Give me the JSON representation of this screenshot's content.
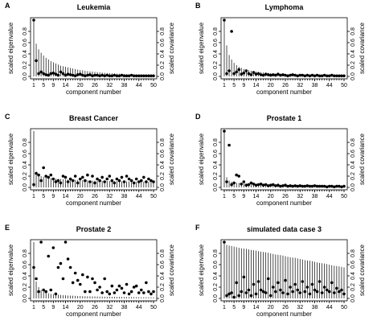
{
  "chart_data": [
    {
      "type": "scatter",
      "letter": "A",
      "title": "Leukemia",
      "xlabel": "component number",
      "ylabel": "scaled eigenvalue",
      "ylabel_right": "scaled covariance",
      "xlim": [
        1,
        50
      ],
      "ylim": [
        0,
        1
      ],
      "x_ticks": [
        "1",
        "5",
        "9",
        "14",
        "20",
        "26",
        "32",
        "38",
        "44",
        "50"
      ],
      "y_ticks": [
        "0.0",
        "0.2",
        "0.4",
        "0.6",
        "0.8"
      ],
      "y_ticks_right": [
        "0.0",
        "0.2",
        "0.4",
        "0.6",
        "0.8"
      ],
      "eigenvalues": [
        1.0,
        0.58,
        0.48,
        0.42,
        0.37,
        0.33,
        0.3,
        0.27,
        0.25,
        0.23,
        0.21,
        0.19,
        0.18,
        0.17,
        0.16,
        0.15,
        0.14,
        0.13,
        0.12,
        0.115,
        0.11,
        0.1,
        0.095,
        0.09,
        0.085,
        0.08,
        0.076,
        0.072,
        0.068,
        0.064,
        0.06,
        0.057,
        0.054,
        0.051,
        0.048,
        0.046,
        0.044,
        0.042,
        0.04,
        0.038,
        0.036,
        0.034,
        0.032,
        0.031,
        0.03,
        0.029,
        0.028,
        0.027,
        0.026,
        0.025
      ],
      "covariances": [
        1.0,
        0.28,
        0.05,
        0.08,
        0.05,
        0.03,
        0.02,
        0.05,
        0.06,
        0.04,
        0.02,
        0.08,
        0.05,
        0.02,
        0.04,
        0.03,
        0.02,
        0.01,
        0.03,
        0.04,
        0.02,
        0.01,
        0.02,
        0.03,
        0.01,
        0.02,
        0.02,
        0.01,
        0.02,
        0.01,
        0.02,
        0.01,
        0.01,
        0.02,
        0.01,
        0.01,
        0.02,
        0.01,
        0.01,
        0.01,
        0.02,
        0.01,
        0.01,
        0.01,
        0.01,
        0.01,
        0.01,
        0.01,
        0.01,
        0.01
      ]
    },
    {
      "type": "scatter",
      "letter": "B",
      "title": "Lymphoma",
      "xlabel": "component number",
      "ylabel": "scaled eigenvalue",
      "ylabel_right": "scaled covariance",
      "xlim": [
        1,
        50
      ],
      "ylim": [
        0,
        1
      ],
      "x_ticks": [
        "1",
        "5",
        "9",
        "14",
        "20",
        "26",
        "32",
        "38",
        "44",
        "50"
      ],
      "y_ticks": [
        "0.0",
        "0.2",
        "0.4",
        "0.6",
        "0.8"
      ],
      "y_ticks_right": [
        "0.0",
        "0.2",
        "0.4",
        "0.6",
        "0.8"
      ],
      "eigenvalues": [
        1.0,
        0.55,
        0.38,
        0.3,
        0.24,
        0.2,
        0.17,
        0.15,
        0.13,
        0.12,
        0.11,
        0.1,
        0.09,
        0.085,
        0.08,
        0.075,
        0.07,
        0.066,
        0.062,
        0.058,
        0.055,
        0.052,
        0.049,
        0.046,
        0.044,
        0.042,
        0.04,
        0.038,
        0.036,
        0.034,
        0.033,
        0.032,
        0.031,
        0.03,
        0.029,
        0.028,
        0.027,
        0.026,
        0.025,
        0.024,
        0.023,
        0.022,
        0.021,
        0.02,
        0.02,
        0.019,
        0.018,
        0.018,
        0.017,
        0.016
      ],
      "covariances": [
        1.0,
        0.05,
        0.1,
        0.8,
        0.05,
        0.08,
        0.12,
        0.04,
        0.06,
        0.1,
        0.05,
        0.03,
        0.07,
        0.04,
        0.05,
        0.03,
        0.02,
        0.04,
        0.03,
        0.02,
        0.03,
        0.02,
        0.04,
        0.02,
        0.03,
        0.02,
        0.01,
        0.02,
        0.03,
        0.02,
        0.01,
        0.02,
        0.02,
        0.01,
        0.02,
        0.01,
        0.02,
        0.01,
        0.02,
        0.01,
        0.01,
        0.02,
        0.01,
        0.01,
        0.02,
        0.01,
        0.01,
        0.01,
        0.01,
        0.01
      ]
    },
    {
      "type": "scatter",
      "letter": "C",
      "title": "Breast Cancer",
      "xlabel": "component number",
      "ylabel": "scaled eigenvalue",
      "ylabel_right": "scaled covariance",
      "xlim": [
        1,
        50
      ],
      "ylim": [
        0,
        1
      ],
      "x_ticks": [
        "1",
        "5",
        "9",
        "14",
        "20",
        "26",
        "32",
        "38",
        "44",
        "50"
      ],
      "y_ticks": [
        "0.0",
        "0.2",
        "0.4",
        "0.6",
        "0.8"
      ],
      "y_ticks_right": [
        "0.0",
        "0.2",
        "0.4",
        "0.6",
        "0.8"
      ],
      "eigenvalues": [
        1.0,
        0.28,
        0.22,
        0.2,
        0.19,
        0.18,
        0.17,
        0.165,
        0.16,
        0.155,
        0.15,
        0.148,
        0.145,
        0.142,
        0.14,
        0.138,
        0.136,
        0.134,
        0.132,
        0.13,
        0.128,
        0.126,
        0.124,
        0.122,
        0.12,
        0.119,
        0.118,
        0.117,
        0.116,
        0.115,
        0.114,
        0.113,
        0.112,
        0.111,
        0.11,
        0.109,
        0.108,
        0.107,
        0.106,
        0.105,
        0.104,
        0.103,
        0.102,
        0.101,
        0.1,
        0.1,
        0.099,
        0.098,
        0.097,
        0.096
      ],
      "covariances": [
        0.05,
        0.25,
        0.22,
        0.12,
        0.35,
        0.2,
        0.18,
        0.22,
        0.15,
        0.1,
        0.12,
        0.08,
        0.2,
        0.18,
        0.1,
        0.15,
        0.12,
        0.2,
        0.08,
        0.15,
        0.18,
        0.12,
        0.22,
        0.1,
        0.2,
        0.08,
        0.15,
        0.12,
        0.18,
        0.1,
        0.15,
        0.2,
        0.12,
        0.08,
        0.15,
        0.12,
        0.18,
        0.1,
        0.2,
        0.15,
        0.12,
        0.08,
        0.15,
        0.1,
        0.12,
        0.18,
        0.1,
        0.15,
        0.12,
        0.1
      ]
    },
    {
      "type": "scatter",
      "letter": "D",
      "title": "Prostate 1",
      "xlabel": "component number",
      "ylabel": "scaled eigenvalue",
      "ylabel_right": "scaled covariance",
      "xlim": [
        1,
        50
      ],
      "ylim": [
        0,
        1
      ],
      "x_ticks": [
        "1",
        "5",
        "9",
        "14",
        "20",
        "26",
        "32",
        "38",
        "44",
        "50"
      ],
      "y_ticks": [
        "0.0",
        "0.2",
        "0.4",
        "0.6",
        "0.8"
      ],
      "y_ticks_right": [
        "0.0",
        "0.2",
        "0.4",
        "0.6",
        "0.8"
      ],
      "eigenvalues": [
        1.0,
        0.18,
        0.12,
        0.1,
        0.09,
        0.085,
        0.08,
        0.075,
        0.07,
        0.068,
        0.066,
        0.064,
        0.062,
        0.06,
        0.058,
        0.056,
        0.054,
        0.052,
        0.05,
        0.049,
        0.048,
        0.047,
        0.046,
        0.045,
        0.044,
        0.043,
        0.042,
        0.041,
        0.04,
        0.039,
        0.038,
        0.037,
        0.036,
        0.035,
        0.034,
        0.033,
        0.032,
        0.031,
        0.03,
        0.03,
        0.029,
        0.028,
        0.028,
        0.027,
        0.026,
        0.026,
        0.025,
        0.025,
        0.024,
        0.024
      ],
      "covariances": [
        1.0,
        0.1,
        0.75,
        0.05,
        0.08,
        0.22,
        0.2,
        0.06,
        0.1,
        0.04,
        0.05,
        0.08,
        0.06,
        0.04,
        0.05,
        0.06,
        0.04,
        0.05,
        0.03,
        0.04,
        0.05,
        0.03,
        0.04,
        0.02,
        0.03,
        0.04,
        0.02,
        0.03,
        0.02,
        0.03,
        0.02,
        0.03,
        0.02,
        0.02,
        0.03,
        0.02,
        0.02,
        0.03,
        0.02,
        0.02,
        0.02,
        0.02,
        0.01,
        0.02,
        0.02,
        0.01,
        0.02,
        0.02,
        0.01,
        0.02
      ]
    },
    {
      "type": "scatter",
      "letter": "E",
      "title": "Prostate 2",
      "xlabel": "component number",
      "ylabel": "scaled eigenvalue",
      "ylabel_right": "scaled covariance",
      "xlim": [
        1,
        50
      ],
      "ylim": [
        0,
        1
      ],
      "x_ticks": [
        "1",
        "5",
        "9",
        "14",
        "20",
        "26",
        "32",
        "38",
        "44",
        "50"
      ],
      "y_ticks": [
        "0.0",
        "0.2",
        "0.4",
        "0.6",
        "0.8"
      ],
      "y_ticks_right": [
        "0.0",
        "0.2",
        "0.4",
        "0.6",
        "0.8"
      ],
      "eigenvalues": [
        1.0,
        0.3,
        0.2,
        0.15,
        0.12,
        0.1,
        0.09,
        0.08,
        0.075,
        0.07,
        0.066,
        0.062,
        0.058,
        0.055,
        0.052,
        0.05,
        0.048,
        0.046,
        0.044,
        0.042,
        0.04,
        0.039,
        0.038,
        0.037,
        0.036,
        0.035,
        0.034,
        0.033,
        0.032,
        0.031,
        0.03,
        0.03,
        0.029,
        0.028,
        0.027,
        0.027,
        0.026,
        0.025,
        0.025,
        0.024,
        0.023,
        0.023,
        0.022,
        0.022,
        0.021,
        0.021,
        0.02,
        0.02,
        0.02,
        0.019
      ],
      "covariances": [
        0.55,
        0.35,
        0.12,
        1.0,
        0.15,
        0.12,
        0.75,
        0.15,
        0.9,
        0.08,
        0.55,
        0.62,
        0.35,
        1.0,
        0.7,
        0.55,
        0.28,
        0.45,
        0.32,
        0.25,
        0.42,
        0.12,
        0.38,
        0.12,
        0.35,
        0.28,
        0.15,
        0.2,
        0.1,
        0.35,
        0.12,
        0.08,
        0.22,
        0.1,
        0.15,
        0.22,
        0.18,
        0.1,
        0.25,
        0.08,
        0.12,
        0.2,
        0.22,
        0.1,
        0.15,
        0.1,
        0.28,
        0.12,
        0.08,
        0.12
      ]
    },
    {
      "type": "scatter",
      "letter": "F",
      "title": "simulated data case 3",
      "xlabel": "component number",
      "ylabel": "scaled eigenvalue",
      "ylabel_right": "scaled covariance",
      "xlim": [
        1,
        50
      ],
      "ylim": [
        0,
        1
      ],
      "x_ticks": [
        "1",
        "5",
        "9",
        "14",
        "20",
        "26",
        "32",
        "38",
        "44",
        "50"
      ],
      "y_ticks": [
        "0.0",
        "0.2",
        "0.4",
        "0.6",
        "0.8"
      ],
      "y_ticks_right": [
        "0.0",
        "0.2",
        "0.4",
        "0.6",
        "0.8"
      ],
      "eigenvalues": [
        1.0,
        0.95,
        0.94,
        0.93,
        0.92,
        0.91,
        0.9,
        0.89,
        0.885,
        0.88,
        0.87,
        0.86,
        0.855,
        0.85,
        0.84,
        0.83,
        0.825,
        0.82,
        0.81,
        0.8,
        0.79,
        0.78,
        0.775,
        0.77,
        0.76,
        0.75,
        0.74,
        0.73,
        0.725,
        0.72,
        0.71,
        0.7,
        0.69,
        0.68,
        0.675,
        0.67,
        0.66,
        0.65,
        0.64,
        0.63,
        0.625,
        0.62,
        0.61,
        0.6,
        0.59,
        0.58,
        0.575,
        0.57,
        0.56,
        0.55
      ],
      "covariances": [
        1.0,
        0.05,
        0.08,
        0.1,
        0.02,
        0.28,
        0.05,
        0.12,
        0.38,
        0.1,
        0.15,
        0.05,
        0.25,
        0.08,
        0.3,
        0.15,
        0.12,
        0.1,
        0.35,
        0.05,
        0.2,
        0.12,
        0.28,
        0.15,
        0.1,
        0.32,
        0.08,
        0.2,
        0.12,
        0.25,
        0.15,
        0.1,
        0.3,
        0.12,
        0.2,
        0.08,
        0.25,
        0.15,
        0.12,
        0.3,
        0.1,
        0.2,
        0.15,
        0.12,
        0.28,
        0.1,
        0.18,
        0.12,
        0.15,
        0.08
      ]
    }
  ]
}
